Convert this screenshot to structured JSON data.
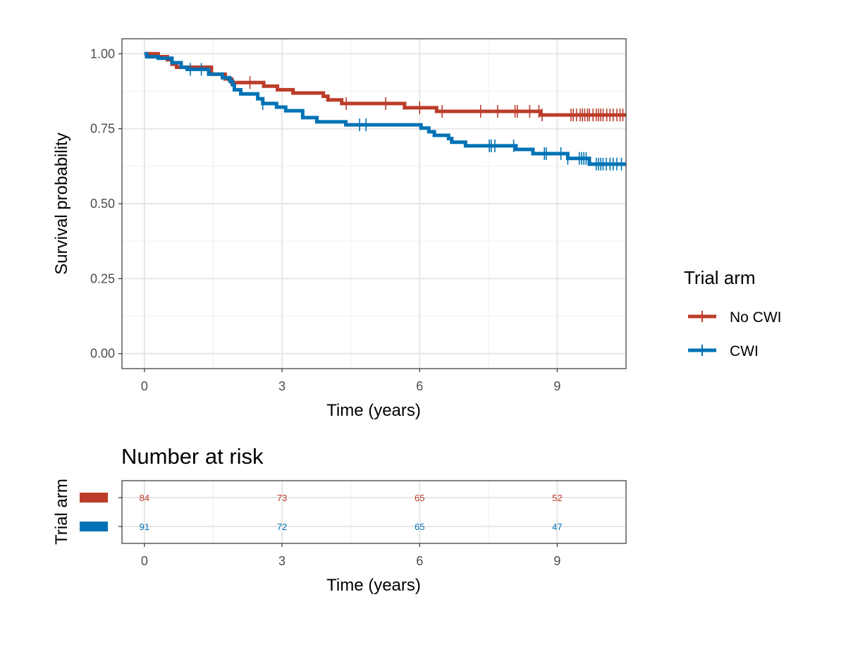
{
  "chart_data": [
    {
      "type": "line",
      "subtype": "kaplan-meier",
      "xlabel": "Time (years)",
      "ylabel": "Survival probability",
      "xlim": [
        -0.49,
        10.5
      ],
      "ylim": [
        -0.05,
        1.05
      ],
      "xticks": [
        0,
        3,
        6,
        9
      ],
      "xtick_labels": [
        "0",
        "3",
        "6",
        "9"
      ],
      "yticks": [
        0,
        0.25,
        0.5,
        0.75,
        1
      ],
      "ytick_labels": [
        "0.00",
        "0.25",
        "0.50",
        "0.75",
        "1.00"
      ],
      "grid": true,
      "legend": {
        "title": "Trial arm",
        "placement": "right"
      },
      "series": [
        {
          "name": "No CWI",
          "color": "#BC3C29",
          "steps": [
            [
              0,
              1.0
            ],
            [
              0.3,
              0.99
            ],
            [
              0.5,
              0.98
            ],
            [
              0.6,
              0.965
            ],
            [
              0.7,
              0.955
            ],
            [
              1.46,
              0.932
            ],
            [
              1.76,
              0.916
            ],
            [
              1.9,
              0.904
            ],
            [
              2.6,
              0.892
            ],
            [
              2.9,
              0.88
            ],
            [
              3.24,
              0.869
            ],
            [
              3.9,
              0.858
            ],
            [
              4.0,
              0.846
            ],
            [
              4.3,
              0.834
            ],
            [
              5.67,
              0.82
            ],
            [
              6.37,
              0.808
            ],
            [
              8.63,
              0.796
            ]
          ],
          "censored": [
            2.3,
            4.4,
            5.26,
            6.0,
            6.49,
            7.33,
            7.7,
            8.08,
            8.13,
            8.4,
            8.6,
            8.67,
            9.3,
            9.35,
            9.42,
            9.5,
            9.55,
            9.6,
            9.66,
            9.7,
            9.78,
            9.85,
            9.9,
            9.95,
            10.0,
            10.08,
            10.15,
            10.22,
            10.3,
            10.37,
            10.43
          ]
        },
        {
          "name": "CWI",
          "color": "#0072B5",
          "steps": [
            [
              0,
              1.0
            ],
            [
              0.05,
              0.99
            ],
            [
              0.3,
              0.985
            ],
            [
              0.6,
              0.97
            ],
            [
              0.8,
              0.955
            ],
            [
              0.93,
              0.948
            ],
            [
              1.4,
              0.932
            ],
            [
              1.7,
              0.92
            ],
            [
              1.86,
              0.909
            ],
            [
              1.92,
              0.897
            ],
            [
              1.96,
              0.88
            ],
            [
              2.1,
              0.866
            ],
            [
              2.47,
              0.85
            ],
            [
              2.58,
              0.834
            ],
            [
              2.88,
              0.822
            ],
            [
              3.08,
              0.81
            ],
            [
              3.45,
              0.787
            ],
            [
              3.76,
              0.773
            ],
            [
              4.39,
              0.763
            ],
            [
              6.03,
              0.752
            ],
            [
              6.2,
              0.74
            ],
            [
              6.32,
              0.728
            ],
            [
              6.63,
              0.717
            ],
            [
              6.7,
              0.705
            ],
            [
              7.0,
              0.693
            ],
            [
              8.1,
              0.681
            ],
            [
              8.47,
              0.667
            ],
            [
              9.23,
              0.651
            ],
            [
              9.7,
              0.632
            ]
          ],
          "censored": [
            1.0,
            1.24,
            2.58,
            4.69,
            4.83,
            7.52,
            7.56,
            7.64,
            8.05,
            8.72,
            8.76,
            9.08,
            9.23,
            9.48,
            9.53,
            9.58,
            9.63,
            9.85,
            9.9,
            9.95,
            10.0,
            10.07,
            10.15,
            10.22,
            10.3,
            10.4
          ]
        }
      ]
    },
    {
      "type": "table",
      "title": "Number at risk",
      "xlabel": "Time (years)",
      "ylabel": "Trial arm",
      "xticks": [
        0,
        3,
        6,
        9
      ],
      "xtick_labels": [
        "0",
        "3",
        "6",
        "9"
      ],
      "rows": [
        {
          "name": "No CWI",
          "color": "#BC3C29",
          "values": [
            "84",
            "73",
            "65",
            "52"
          ]
        },
        {
          "name": "CWI",
          "color": "#0072B5",
          "values": [
            "91",
            "72",
            "65",
            "47"
          ]
        }
      ]
    }
  ]
}
